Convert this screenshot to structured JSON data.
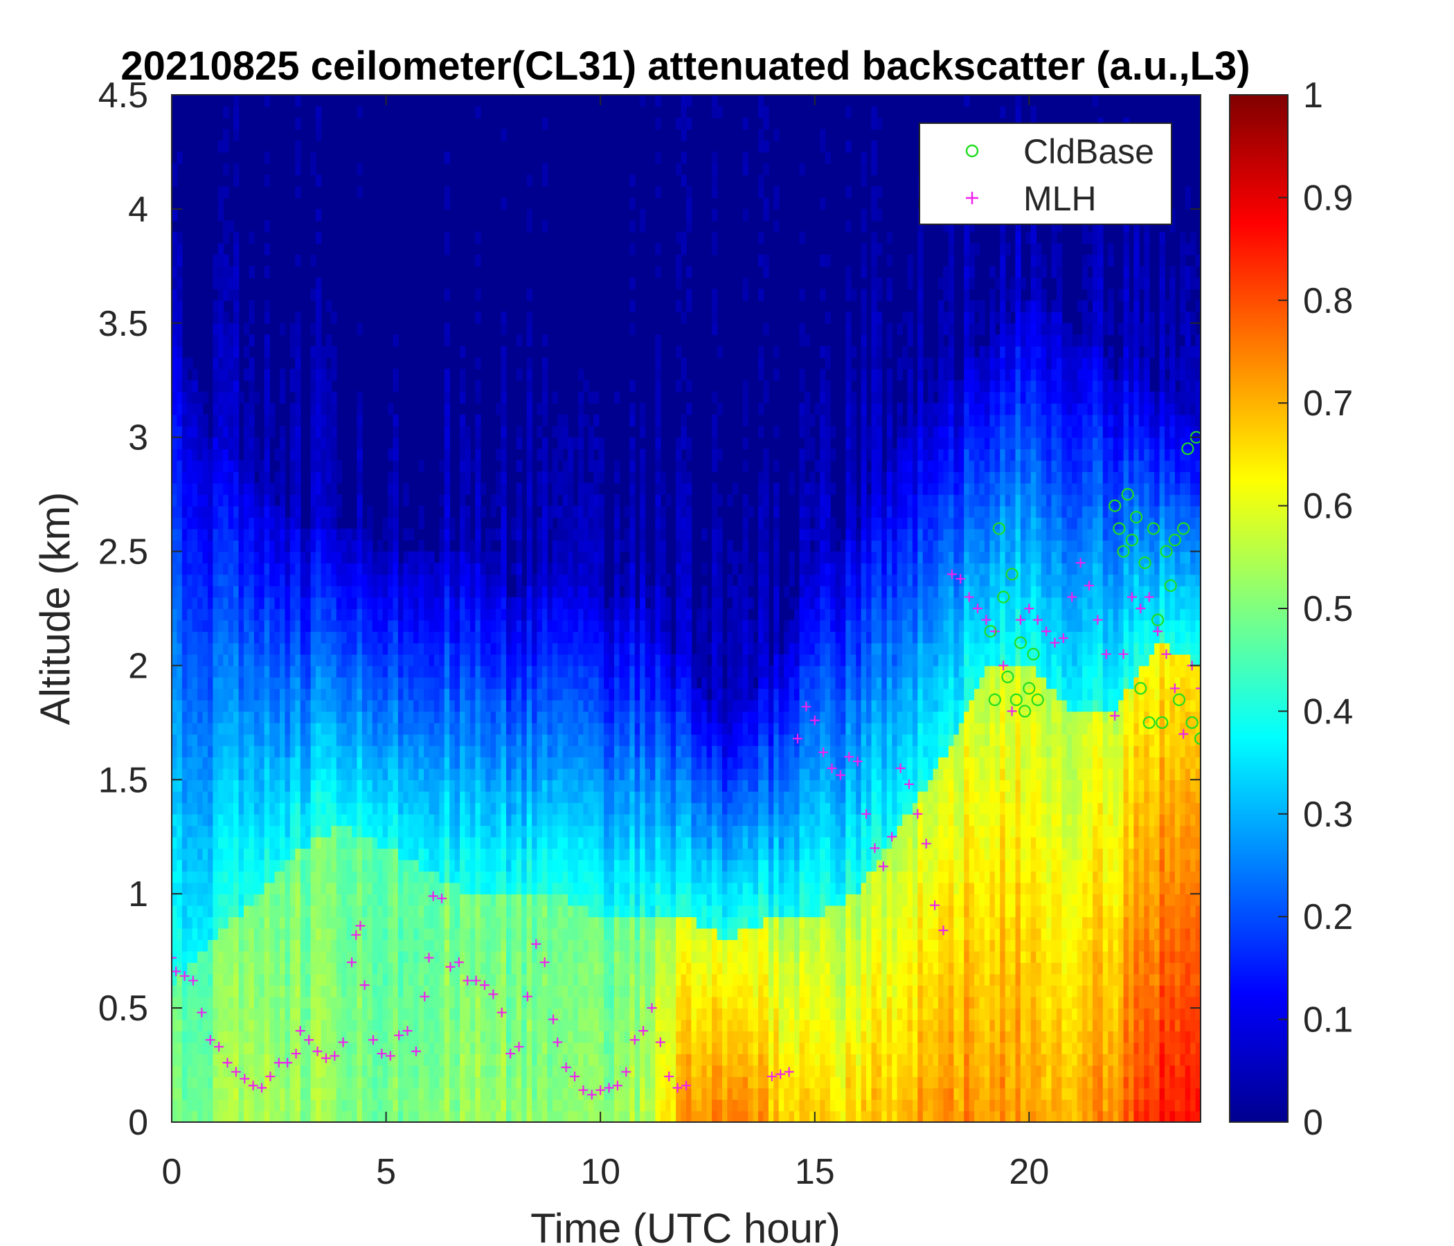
{
  "chart_data": {
    "type": "heatmap",
    "title": "20210825 ceilometer(CL31) attenuated backscatter (a.u.,L3)",
    "xlabel": "Time (UTC hour)",
    "ylabel": "Altitude (km)",
    "xlim": [
      0,
      24
    ],
    "ylim": [
      0,
      4.5
    ],
    "x_ticks": [
      "0",
      "5",
      "10",
      "15",
      "20"
    ],
    "x_tick_values": [
      0,
      5,
      10,
      15,
      20
    ],
    "y_ticks": [
      "0",
      "0.5",
      "1",
      "1.5",
      "2",
      "2.5",
      "3",
      "3.5",
      "4",
      "4.5"
    ],
    "y_tick_values": [
      0,
      0.5,
      1,
      1.5,
      2,
      2.5,
      3,
      3.5,
      4,
      4.5
    ],
    "colorbar": {
      "colormap": "jet",
      "range": [
        0,
        1
      ],
      "ticks": [
        "0",
        "0.1",
        "0.2",
        "0.3",
        "0.4",
        "0.5",
        "0.6",
        "0.7",
        "0.8",
        "0.9",
        "1"
      ],
      "tick_values": [
        0,
        0.1,
        0.2,
        0.3,
        0.4,
        0.5,
        0.6,
        0.7,
        0.8,
        0.9,
        1.0
      ]
    },
    "legend": {
      "placement": "top-right",
      "entries": [
        {
          "label": "CldBase",
          "marker": "circle",
          "color": "#22dd22"
        },
        {
          "label": "MLH",
          "marker": "plus",
          "color": "#ee22ee"
        }
      ]
    },
    "backscatter_profile": {
      "description_keys": [
        "t",
        "surface",
        "top",
        "thick"
      ],
      "times": [
        0,
        1,
        2,
        3,
        4,
        5,
        6,
        7,
        8,
        9,
        10,
        11,
        12,
        13,
        14,
        15,
        16,
        17,
        18,
        19,
        20,
        21,
        22,
        23,
        24
      ],
      "surface_values": [
        0.5,
        0.52,
        0.55,
        0.53,
        0.52,
        0.5,
        0.52,
        0.53,
        0.52,
        0.5,
        0.52,
        0.55,
        0.72,
        0.74,
        0.7,
        0.66,
        0.66,
        0.7,
        0.74,
        0.74,
        0.72,
        0.72,
        0.74,
        0.85,
        0.85
      ],
      "aerosol_top_km": [
        3.5,
        3.0,
        2.8,
        2.6,
        2.6,
        2.5,
        2.5,
        2.5,
        2.3,
        2.4,
        2.3,
        2.3,
        2.0,
        1.7,
        2.0,
        2.4,
        2.6,
        3.0,
        3.2,
        3.4,
        3.6,
        3.5,
        3.3,
        3.2,
        3.0
      ],
      "bright_layer_km": [
        0.6,
        0.8,
        1.0,
        1.2,
        1.3,
        1.2,
        1.1,
        1.0,
        1.0,
        1.0,
        0.9,
        0.9,
        0.9,
        0.8,
        0.9,
        0.9,
        1.0,
        1.3,
        1.6,
        2.0,
        2.0,
        1.8,
        1.8,
        2.1,
        2.0
      ]
    },
    "series": [
      {
        "name": "MLH",
        "marker": "plus",
        "x": [
          0.0,
          0.1,
          0.3,
          0.5,
          0.7,
          0.9,
          1.1,
          1.3,
          1.5,
          1.7,
          1.9,
          2.1,
          2.3,
          2.5,
          2.7,
          2.9,
          3.0,
          3.2,
          3.4,
          3.6,
          3.8,
          4.0,
          4.2,
          4.3,
          4.4,
          4.5,
          4.7,
          4.9,
          5.1,
          5.3,
          5.5,
          5.7,
          5.9,
          6.0,
          6.1,
          6.3,
          6.5,
          6.7,
          6.9,
          7.1,
          7.3,
          7.5,
          7.7,
          7.9,
          8.1,
          8.3,
          8.5,
          8.7,
          8.9,
          9.0,
          9.2,
          9.4,
          9.6,
          9.8,
          10.0,
          10.2,
          10.4,
          10.6,
          10.8,
          11.0,
          11.2,
          11.4,
          11.6,
          11.8,
          12.0,
          14.0,
          14.2,
          14.4,
          14.6,
          14.8,
          15.0,
          15.2,
          15.4,
          15.6,
          15.8,
          16.0,
          16.2,
          16.4,
          16.6,
          16.8,
          17.0,
          17.2,
          17.4,
          17.6,
          17.8,
          18.0,
          18.2,
          18.4,
          18.6,
          18.8,
          19.0,
          19.2,
          19.4,
          19.6,
          19.8,
          20.0,
          20.2,
          20.4,
          20.6,
          20.8,
          21.0,
          21.2,
          21.4,
          21.6,
          21.8,
          22.0,
          22.2,
          22.4,
          22.6,
          22.8,
          23.0,
          23.2,
          23.4,
          23.6,
          23.8,
          24.0
        ],
        "y": [
          0.72,
          0.66,
          0.64,
          0.62,
          0.48,
          0.36,
          0.33,
          0.26,
          0.22,
          0.19,
          0.16,
          0.15,
          0.2,
          0.26,
          0.26,
          0.3,
          0.4,
          0.36,
          0.31,
          0.28,
          0.29,
          0.35,
          0.7,
          0.82,
          0.86,
          0.6,
          0.36,
          0.3,
          0.29,
          0.38,
          0.4,
          0.31,
          0.55,
          0.72,
          0.99,
          0.98,
          0.68,
          0.7,
          0.62,
          0.62,
          0.6,
          0.56,
          0.48,
          0.3,
          0.33,
          0.55,
          0.78,
          0.7,
          0.45,
          0.35,
          0.24,
          0.2,
          0.14,
          0.12,
          0.14,
          0.15,
          0.16,
          0.22,
          0.36,
          0.4,
          0.5,
          0.35,
          0.2,
          0.15,
          0.16,
          0.2,
          0.21,
          0.22,
          1.68,
          1.82,
          1.76,
          1.62,
          1.55,
          1.52,
          1.6,
          1.58,
          1.35,
          1.2,
          1.12,
          1.25,
          1.55,
          1.48,
          1.35,
          1.22,
          0.95,
          0.84,
          2.4,
          2.38,
          2.3,
          2.25,
          2.2,
          2.15,
          2.0,
          1.8,
          2.2,
          2.25,
          2.2,
          2.15,
          2.1,
          2.12,
          2.3,
          2.45,
          2.35,
          2.2,
          2.05,
          1.78,
          2.05,
          2.3,
          2.25,
          2.3,
          2.15,
          2.05,
          1.9,
          1.7,
          2.0,
          1.9
        ]
      },
      {
        "name": "CldBase",
        "marker": "circle",
        "x": [
          19.1,
          19.2,
          19.3,
          19.4,
          19.5,
          19.6,
          19.7,
          19.8,
          19.9,
          20.0,
          20.1,
          20.2,
          22.0,
          22.1,
          22.2,
          22.3,
          22.4,
          22.5,
          22.6,
          22.7,
          22.8,
          22.9,
          23.0,
          23.1,
          23.2,
          23.3,
          23.4,
          23.5,
          23.6,
          23.7,
          23.8,
          23.9,
          24.0
        ],
        "y": [
          2.15,
          1.85,
          2.6,
          2.3,
          1.95,
          2.4,
          1.85,
          2.1,
          1.8,
          1.9,
          2.05,
          1.85,
          2.7,
          2.6,
          2.5,
          2.75,
          2.55,
          2.65,
          1.9,
          2.45,
          1.75,
          2.6,
          2.2,
          1.75,
          2.5,
          2.35,
          2.55,
          1.85,
          2.6,
          2.95,
          1.75,
          3.0,
          1.68
        ]
      }
    ]
  }
}
